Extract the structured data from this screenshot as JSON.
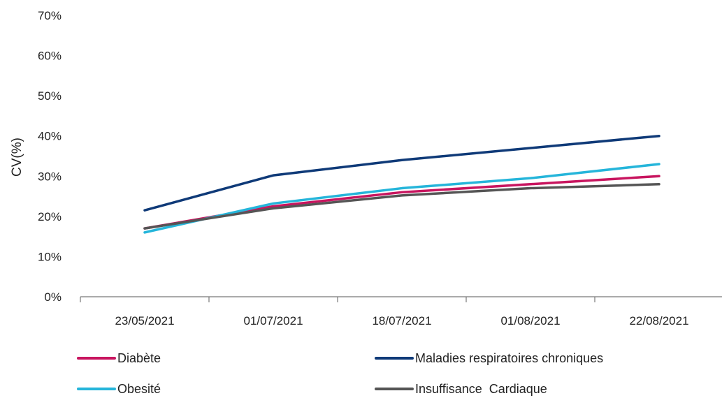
{
  "chart_data": {
    "type": "line",
    "title": "",
    "xlabel": "",
    "ylabel": "CV(%)",
    "ylim": [
      0,
      70
    ],
    "yticks": [
      "0%",
      "10%",
      "20%",
      "30%",
      "40%",
      "50%",
      "60%",
      "70%"
    ],
    "categories": [
      "23/05/2021",
      "01/07/2021",
      "18/07/2021",
      "01/08/2021",
      "22/08/2021"
    ],
    "grid": false,
    "legend_position": "bottom",
    "series": [
      {
        "name": "Diabète",
        "color": "#C8155F",
        "values": [
          17,
          22.5,
          26,
          28,
          30
        ]
      },
      {
        "name": "Maladies respiratoires chroniques",
        "color": "#0F3A78",
        "values": [
          21.5,
          30.2,
          34,
          37,
          40
        ]
      },
      {
        "name": "Obesité",
        "color": "#25B5DA",
        "values": [
          16,
          23.2,
          27,
          29.5,
          33
        ]
      },
      {
        "name": "Insuffisance  Cardiaque",
        "color": "#555555",
        "values": [
          17,
          22,
          25.2,
          27,
          28
        ]
      }
    ]
  }
}
